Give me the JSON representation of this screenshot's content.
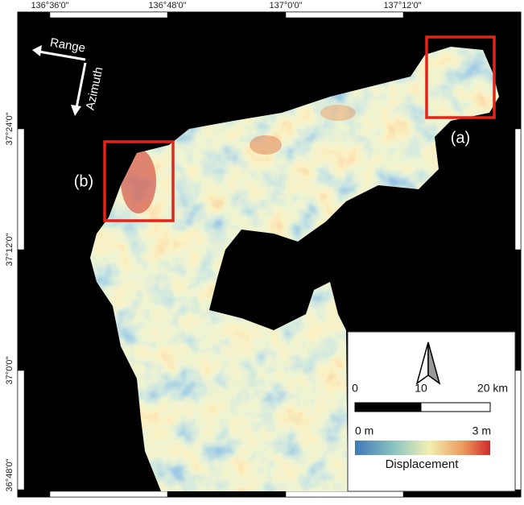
{
  "coordinates": {
    "top": [
      "136°36'0\"",
      "136°48'0\"",
      "137°0'0\"",
      "137°12'0\""
    ],
    "left": [
      "37°24'0\"",
      "37°12'0\"",
      "37°0'0\"",
      "36°48'0\""
    ]
  },
  "annotations": {
    "range": "Range",
    "azimuth": "Azimuth",
    "box_a": "(a)",
    "box_b": "(b)"
  },
  "legend": {
    "scale": [
      "0",
      "10",
      "20 km"
    ],
    "color_min": "0 m",
    "color_max": "3 m",
    "title": "Displacement"
  }
}
